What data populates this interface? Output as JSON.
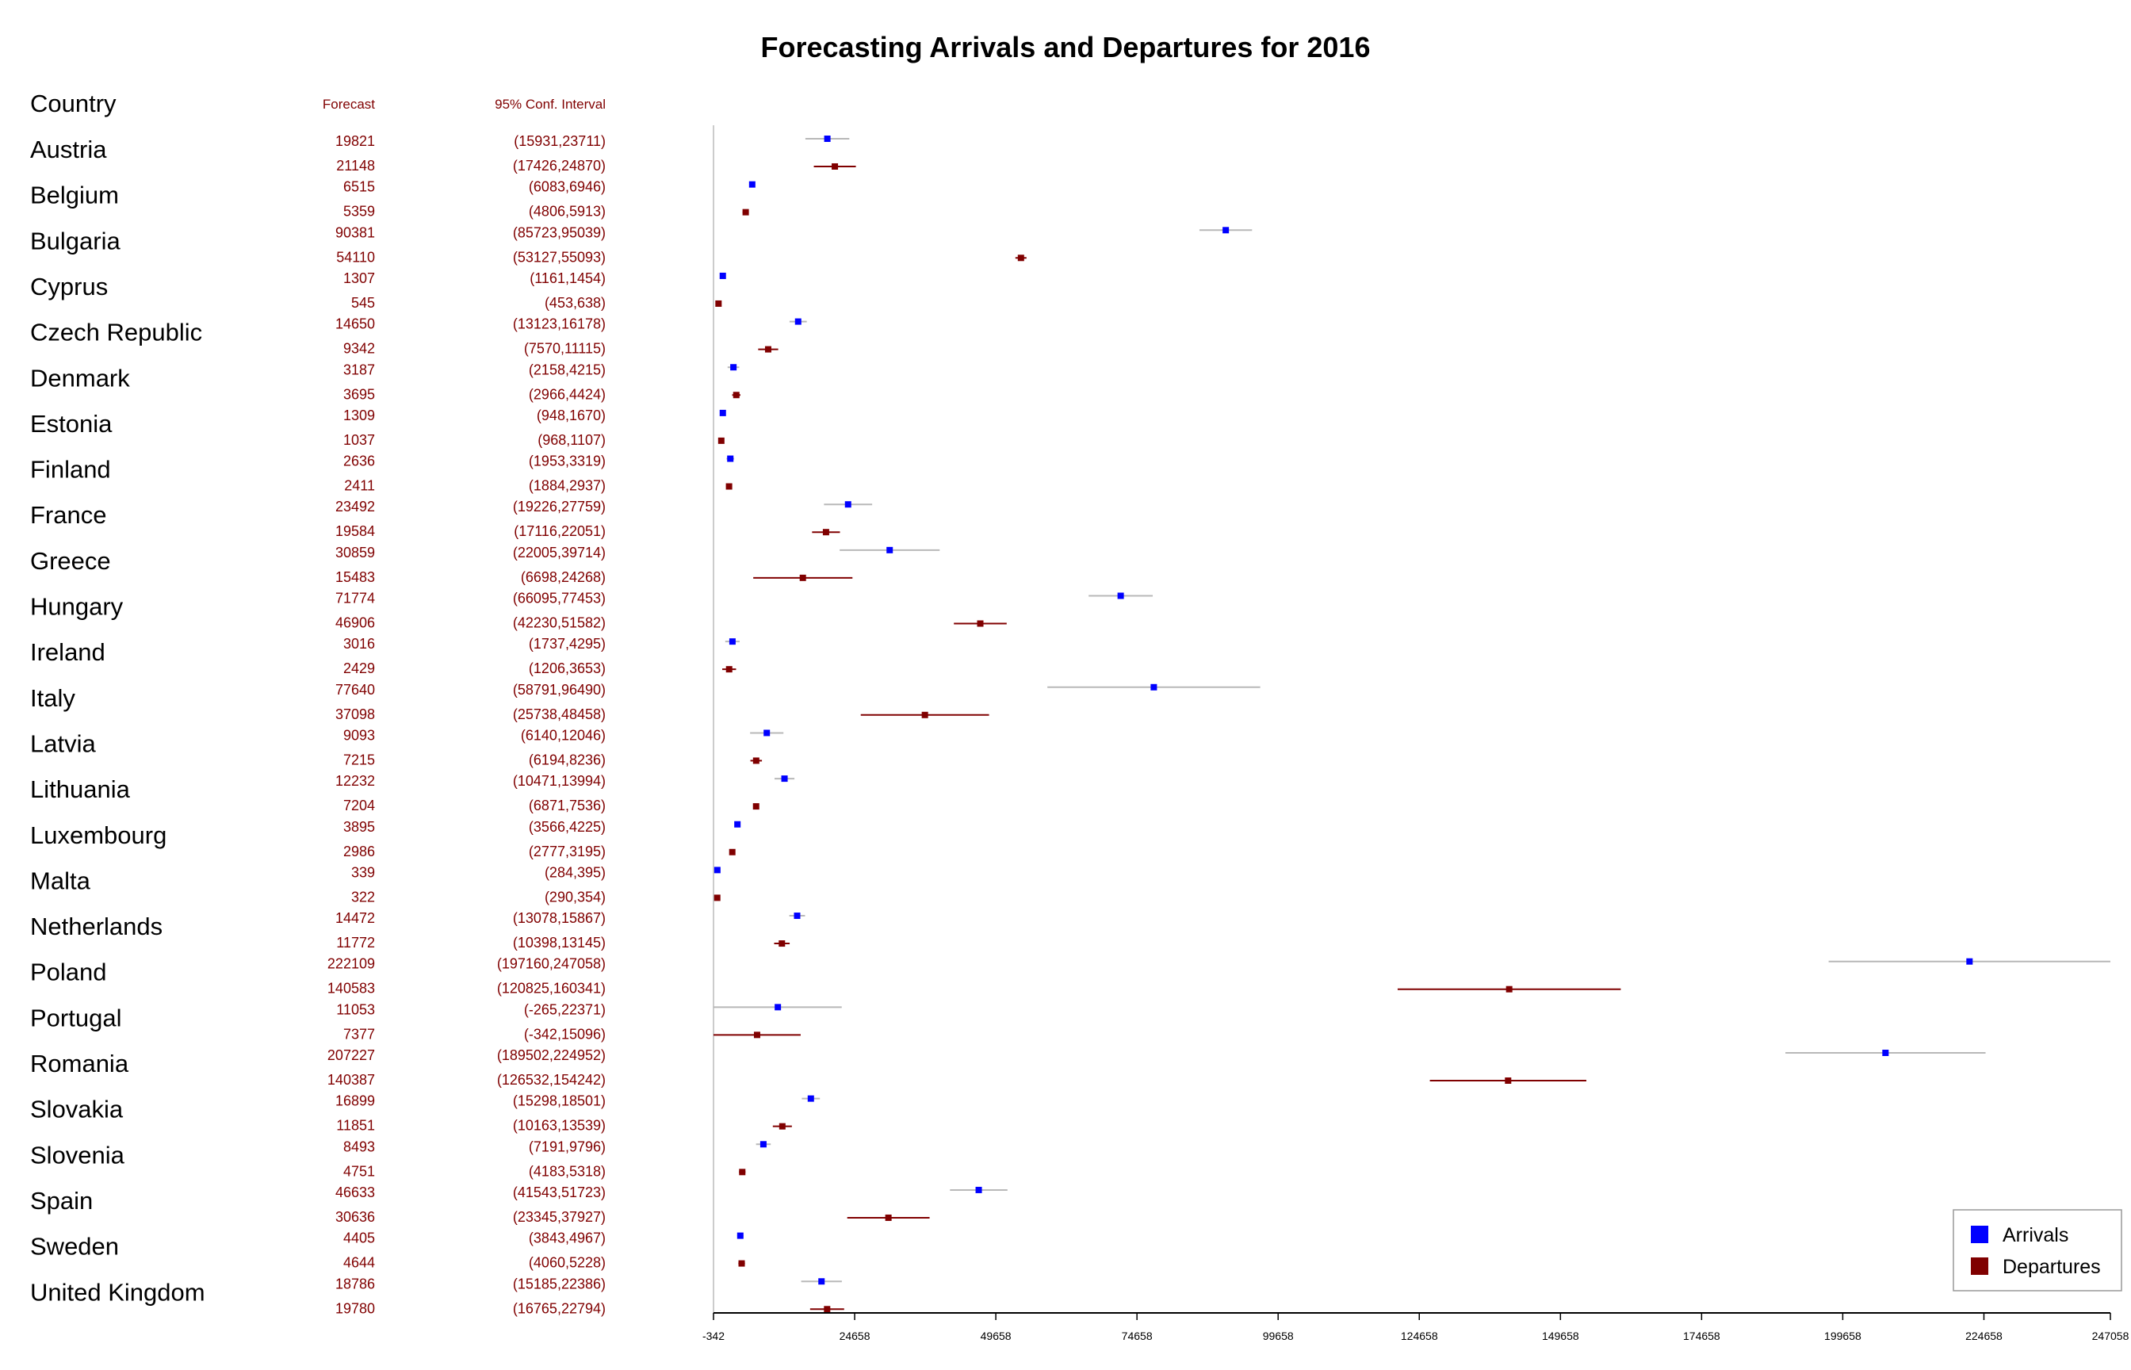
{
  "colors": {
    "arrivals": "#0000ff",
    "departures": "#800000",
    "arrivals_ci": "#b8b8b8",
    "departures_ci": "#800000",
    "text_red": "#800000"
  },
  "chart_data": {
    "type": "forest",
    "title": "Forecasting Arrivals and Departures for 2016",
    "headers": {
      "country": "Country",
      "forecast": "Forecast",
      "ci": "95% Conf. Interval"
    },
    "xlim": [
      -342,
      247058
    ],
    "ticks": [
      "-342",
      "24658",
      "49658",
      "74658",
      "99658",
      "124658",
      "149658",
      "174658",
      "199658",
      "224658",
      "247058"
    ],
    "tick_values": [
      -342,
      24658,
      49658,
      74658,
      99658,
      124658,
      149658,
      174658,
      199658,
      224658,
      247058
    ],
    "legend": {
      "position": "bottom-right",
      "arrivals": "Arrivals",
      "departures": "Departures"
    },
    "rows": [
      {
        "country": "Austria",
        "arr": {
          "f": 19821,
          "lo": 15931,
          "hi": 23711,
          "ftxt": "19821",
          "citxt": "(15931,23711)"
        },
        "dep": {
          "f": 21148,
          "lo": 17426,
          "hi": 24870,
          "ftxt": "21148",
          "citxt": "(17426,24870)"
        }
      },
      {
        "country": "Belgium",
        "arr": {
          "f": 6515,
          "lo": 6083,
          "hi": 6946,
          "ftxt": "6515",
          "citxt": "(6083,6946)"
        },
        "dep": {
          "f": 5359,
          "lo": 4806,
          "hi": 5913,
          "ftxt": "5359",
          "citxt": "(4806,5913)"
        }
      },
      {
        "country": "Bulgaria",
        "arr": {
          "f": 90381,
          "lo": 85723,
          "hi": 95039,
          "ftxt": "90381",
          "citxt": "(85723,95039)"
        },
        "dep": {
          "f": 54110,
          "lo": 53127,
          "hi": 55093,
          "ftxt": "54110",
          "citxt": "(53127,55093)"
        }
      },
      {
        "country": "Cyprus",
        "arr": {
          "f": 1307,
          "lo": 1161,
          "hi": 1454,
          "ftxt": "1307",
          "citxt": "(1161,1454)"
        },
        "dep": {
          "f": 545,
          "lo": 453,
          "hi": 638,
          "ftxt": "545",
          "citxt": "(453,638)"
        }
      },
      {
        "country": "Czech Republic",
        "arr": {
          "f": 14650,
          "lo": 13123,
          "hi": 16178,
          "ftxt": "14650",
          "citxt": "(13123,16178)"
        },
        "dep": {
          "f": 9342,
          "lo": 7570,
          "hi": 11115,
          "ftxt": "9342",
          "citxt": "(7570,11115)"
        }
      },
      {
        "country": "Denmark",
        "arr": {
          "f": 3187,
          "lo": 2158,
          "hi": 4215,
          "ftxt": "3187",
          "citxt": "(2158,4215)"
        },
        "dep": {
          "f": 3695,
          "lo": 2966,
          "hi": 4424,
          "ftxt": "3695",
          "citxt": "(2966,4424)"
        }
      },
      {
        "country": "Estonia",
        "arr": {
          "f": 1309,
          "lo": 948,
          "hi": 1670,
          "ftxt": "1309",
          "citxt": "(948,1670)"
        },
        "dep": {
          "f": 1037,
          "lo": 968,
          "hi": 1107,
          "ftxt": "1037",
          "citxt": "(968,1107)"
        }
      },
      {
        "country": "Finland",
        "arr": {
          "f": 2636,
          "lo": 1953,
          "hi": 3319,
          "ftxt": "2636",
          "citxt": "(1953,3319)"
        },
        "dep": {
          "f": 2411,
          "lo": 1884,
          "hi": 2937,
          "ftxt": "2411",
          "citxt": "(1884,2937)"
        }
      },
      {
        "country": "France",
        "arr": {
          "f": 23492,
          "lo": 19226,
          "hi": 27759,
          "ftxt": "23492",
          "citxt": "(19226,27759)"
        },
        "dep": {
          "f": 19584,
          "lo": 17116,
          "hi": 22051,
          "ftxt": "19584",
          "citxt": "(17116,22051)"
        }
      },
      {
        "country": "Greece",
        "arr": {
          "f": 30859,
          "lo": 22005,
          "hi": 39714,
          "ftxt": "30859",
          "citxt": "(22005,39714)"
        },
        "dep": {
          "f": 15483,
          "lo": 6698,
          "hi": 24268,
          "ftxt": "15483",
          "citxt": "(6698,24268)"
        }
      },
      {
        "country": "Hungary",
        "arr": {
          "f": 71774,
          "lo": 66095,
          "hi": 77453,
          "ftxt": "71774",
          "citxt": "(66095,77453)"
        },
        "dep": {
          "f": 46906,
          "lo": 42230,
          "hi": 51582,
          "ftxt": "46906",
          "citxt": "(42230,51582)"
        }
      },
      {
        "country": "Ireland",
        "arr": {
          "f": 3016,
          "lo": 1737,
          "hi": 4295,
          "ftxt": "3016",
          "citxt": "(1737,4295)"
        },
        "dep": {
          "f": 2429,
          "lo": 1206,
          "hi": 3653,
          "ftxt": "2429",
          "citxt": "(1206,3653)"
        }
      },
      {
        "country": "Italy",
        "arr": {
          "f": 77640,
          "lo": 58791,
          "hi": 96490,
          "ftxt": "77640",
          "citxt": "(58791,96490)"
        },
        "dep": {
          "f": 37098,
          "lo": 25738,
          "hi": 48458,
          "ftxt": "37098",
          "citxt": "(25738,48458)"
        }
      },
      {
        "country": "Latvia",
        "arr": {
          "f": 9093,
          "lo": 6140,
          "hi": 12046,
          "ftxt": "9093",
          "citxt": "(6140,12046)"
        },
        "dep": {
          "f": 7215,
          "lo": 6194,
          "hi": 8236,
          "ftxt": "7215",
          "citxt": "(6194,8236)"
        }
      },
      {
        "country": "Lithuania",
        "arr": {
          "f": 12232,
          "lo": 10471,
          "hi": 13994,
          "ftxt": "12232",
          "citxt": "(10471,13994)"
        },
        "dep": {
          "f": 7204,
          "lo": 6871,
          "hi": 7536,
          "ftxt": "7204",
          "citxt": "(6871,7536)"
        }
      },
      {
        "country": "Luxembourg",
        "arr": {
          "f": 3895,
          "lo": 3566,
          "hi": 4225,
          "ftxt": "3895",
          "citxt": "(3566,4225)"
        },
        "dep": {
          "f": 2986,
          "lo": 2777,
          "hi": 3195,
          "ftxt": "2986",
          "citxt": "(2777,3195)"
        }
      },
      {
        "country": "Malta",
        "arr": {
          "f": 339,
          "lo": 284,
          "hi": 395,
          "ftxt": "339",
          "citxt": "(284,395)"
        },
        "dep": {
          "f": 322,
          "lo": 290,
          "hi": 354,
          "ftxt": "322",
          "citxt": "(290,354)"
        }
      },
      {
        "country": "Netherlands",
        "arr": {
          "f": 14472,
          "lo": 13078,
          "hi": 15867,
          "ftxt": "14472",
          "citxt": "(13078,15867)"
        },
        "dep": {
          "f": 11772,
          "lo": 10398,
          "hi": 13145,
          "ftxt": "11772",
          "citxt": "(10398,13145)"
        }
      },
      {
        "country": "Poland",
        "arr": {
          "f": 222109,
          "lo": 197160,
          "hi": 247058,
          "ftxt": "222109",
          "citxt": "(197160,247058)"
        },
        "dep": {
          "f": 140583,
          "lo": 120825,
          "hi": 160341,
          "ftxt": "140583",
          "citxt": "(120825,160341)"
        }
      },
      {
        "country": "Portugal",
        "arr": {
          "f": 11053,
          "lo": -265,
          "hi": 22371,
          "ftxt": "11053",
          "citxt": "(-265,22371)"
        },
        "dep": {
          "f": 7377,
          "lo": -342,
          "hi": 15096,
          "ftxt": "7377",
          "citxt": "(-342,15096)"
        }
      },
      {
        "country": "Romania",
        "arr": {
          "f": 207227,
          "lo": 189502,
          "hi": 224952,
          "ftxt": "207227",
          "citxt": "(189502,224952)"
        },
        "dep": {
          "f": 140387,
          "lo": 126532,
          "hi": 154242,
          "ftxt": "140387",
          "citxt": "(126532,154242)"
        }
      },
      {
        "country": "Slovakia",
        "arr": {
          "f": 16899,
          "lo": 15298,
          "hi": 18501,
          "ftxt": "16899",
          "citxt": "(15298,18501)"
        },
        "dep": {
          "f": 11851,
          "lo": 10163,
          "hi": 13539,
          "ftxt": "11851",
          "citxt": "(10163,13539)"
        }
      },
      {
        "country": "Slovenia",
        "arr": {
          "f": 8493,
          "lo": 7191,
          "hi": 9796,
          "ftxt": "8493",
          "citxt": "(7191,9796)"
        },
        "dep": {
          "f": 4751,
          "lo": 4183,
          "hi": 5318,
          "ftxt": "4751",
          "citxt": "(4183,5318)"
        }
      },
      {
        "country": "Spain",
        "arr": {
          "f": 46633,
          "lo": 41543,
          "hi": 51723,
          "ftxt": "46633",
          "citxt": "(41543,51723)"
        },
        "dep": {
          "f": 30636,
          "lo": 23345,
          "hi": 37927,
          "ftxt": "30636",
          "citxt": "(23345,37927)"
        }
      },
      {
        "country": "Sweden",
        "arr": {
          "f": 4405,
          "lo": 3843,
          "hi": 4967,
          "ftxt": "4405",
          "citxt": "(3843,4967)"
        },
        "dep": {
          "f": 4644,
          "lo": 4060,
          "hi": 5228,
          "ftxt": "4644",
          "citxt": "(4060,5228)"
        }
      },
      {
        "country": "United Kingdom",
        "arr": {
          "f": 18786,
          "lo": 15185,
          "hi": 22386,
          "ftxt": "18786",
          "citxt": "(15185,22386)"
        },
        "dep": {
          "f": 19780,
          "lo": 16765,
          "hi": 22794,
          "ftxt": "19780",
          "citxt": "(16765,22794)"
        }
      }
    ]
  }
}
